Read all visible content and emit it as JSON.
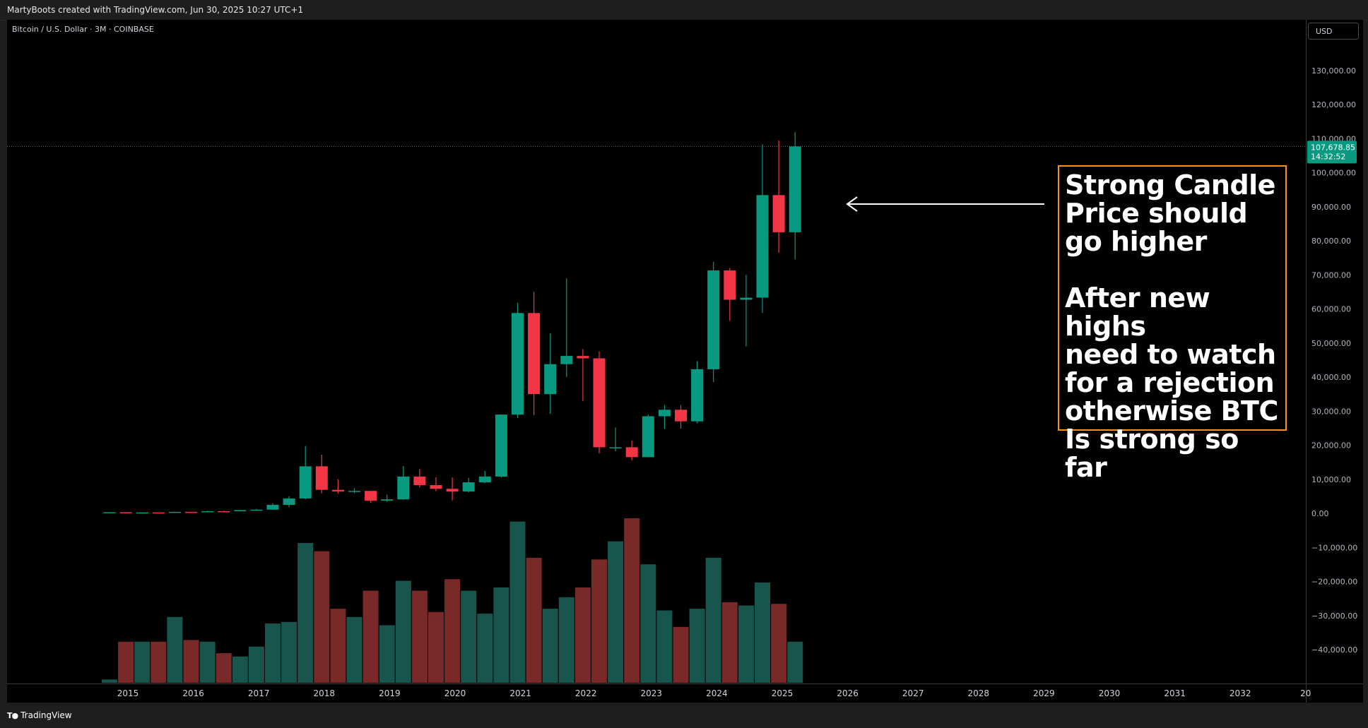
{
  "header": {
    "attribution": "MartyBoots created with TradingView.com, Jun 30, 2025 10:27 UTC+1"
  },
  "symbol": {
    "title": "Bitcoin / U.S. Dollar · 3M · COINBASE"
  },
  "price_scale": {
    "currency": "USD",
    "last_price": "107,678.85",
    "countdown": "14:32:52"
  },
  "annotation": {
    "text": "Strong Candle\nPrice should\ngo higher\n\nAfter new highs\nneed to watch\nfor a rejection\notherwise BTC\nIs strong so far"
  },
  "footer": {
    "brand": "TradingView"
  },
  "colors": {
    "up": "#089981",
    "down": "#f23645",
    "vol_up": "#18564d",
    "vol_down": "#7a2929",
    "annotation_border": "#f7931a",
    "last_price_bg": "#089981"
  },
  "chart_data": {
    "type": "candlestick",
    "interval": "3M",
    "ylim": [
      -50000,
      140000
    ],
    "y_ticks": [
      {
        "v": 130000,
        "label": "130,000.00"
      },
      {
        "v": 120000,
        "label": "120,000.00"
      },
      {
        "v": 110000,
        "label": "110,000.00"
      },
      {
        "v": 100000,
        "label": "100,000.00"
      },
      {
        "v": 90000,
        "label": "90,000.00"
      },
      {
        "v": 80000,
        "label": "80,000.00"
      },
      {
        "v": 70000,
        "label": "70,000.00"
      },
      {
        "v": 60000,
        "label": "60,000.00"
      },
      {
        "v": 50000,
        "label": "50,000.00"
      },
      {
        "v": 40000,
        "label": "40,000.00"
      },
      {
        "v": 30000,
        "label": "30,000.00"
      },
      {
        "v": 20000,
        "label": "20,000.00"
      },
      {
        "v": 10000,
        "label": "10,000.00"
      },
      {
        "v": 0,
        "label": "0.00"
      },
      {
        "v": -10000,
        "label": "−10,000.00"
      },
      {
        "v": -20000,
        "label": "−20,000.00"
      },
      {
        "v": -30000,
        "label": "−30,000.00"
      },
      {
        "v": -40000,
        "label": "−40,000.00"
      }
    ],
    "x_ticks": [
      "2015",
      "2016",
      "2017",
      "2018",
      "2019",
      "2020",
      "2021",
      "2022",
      "2023",
      "2024",
      "2025",
      "2026",
      "2027",
      "2028",
      "2029",
      "2030",
      "2031",
      "2032",
      "20"
    ],
    "candles": [
      {
        "o": 320,
        "h": 380,
        "l": 250,
        "c": 340,
        "vol": 0.02
      },
      {
        "o": 340,
        "h": 350,
        "l": 200,
        "c": 250,
        "vol": 0.25
      },
      {
        "o": 250,
        "h": 320,
        "l": 190,
        "c": 260,
        "vol": 0.25
      },
      {
        "o": 260,
        "h": 260,
        "l": 190,
        "c": 230,
        "vol": 0.25
      },
      {
        "o": 230,
        "h": 470,
        "l": 220,
        "c": 430,
        "vol": 0.4
      },
      {
        "o": 430,
        "h": 460,
        "l": 360,
        "c": 420,
        "vol": 0.26
      },
      {
        "o": 420,
        "h": 770,
        "l": 420,
        "c": 620,
        "vol": 0.25
      },
      {
        "o": 620,
        "h": 780,
        "l": 470,
        "c": 610,
        "vol": 0.18
      },
      {
        "o": 610,
        "h": 970,
        "l": 600,
        "c": 960,
        "vol": 0.16
      },
      {
        "o": 960,
        "h": 1300,
        "l": 890,
        "c": 1080,
        "vol": 0.22
      },
      {
        "o": 1080,
        "h": 3000,
        "l": 1070,
        "c": 2490,
        "vol": 0.36
      },
      {
        "o": 2490,
        "h": 5000,
        "l": 1800,
        "c": 4360,
        "vol": 0.37
      },
      {
        "o": 4360,
        "h": 19800,
        "l": 4100,
        "c": 13800,
        "vol": 0.85
      },
      {
        "o": 13800,
        "h": 17200,
        "l": 5900,
        "c": 6900,
        "vol": 0.8
      },
      {
        "o": 6900,
        "h": 10000,
        "l": 5800,
        "c": 6400,
        "vol": 0.45
      },
      {
        "o": 6400,
        "h": 7400,
        "l": 5900,
        "c": 6600,
        "vol": 0.4
      },
      {
        "o": 6600,
        "h": 6600,
        "l": 3100,
        "c": 3700,
        "vol": 0.56
      },
      {
        "o": 3700,
        "h": 5500,
        "l": 3400,
        "c": 4100,
        "vol": 0.35
      },
      {
        "o": 4100,
        "h": 13900,
        "l": 4000,
        "c": 10800,
        "vol": 0.62
      },
      {
        "o": 10800,
        "h": 13000,
        "l": 7600,
        "c": 8300,
        "vol": 0.56
      },
      {
        "o": 8300,
        "h": 10600,
        "l": 6500,
        "c": 7200,
        "vol": 0.43
      },
      {
        "o": 7200,
        "h": 10500,
        "l": 3800,
        "c": 6400,
        "vol": 0.63
      },
      {
        "o": 6400,
        "h": 10400,
        "l": 6200,
        "c": 9100,
        "vol": 0.56
      },
      {
        "o": 9100,
        "h": 12500,
        "l": 8900,
        "c": 10800,
        "vol": 0.42
      },
      {
        "o": 10800,
        "h": 29000,
        "l": 10500,
        "c": 29000,
        "vol": 0.58
      },
      {
        "o": 29000,
        "h": 61800,
        "l": 28000,
        "c": 58800,
        "vol": 0.98
      },
      {
        "o": 58800,
        "h": 65000,
        "l": 28800,
        "c": 35000,
        "vol": 0.76
      },
      {
        "o": 35000,
        "h": 52900,
        "l": 29200,
        "c": 43800,
        "vol": 0.45
      },
      {
        "o": 43800,
        "h": 69000,
        "l": 40000,
        "c": 46200,
        "vol": 0.52
      },
      {
        "o": 46200,
        "h": 48200,
        "l": 33000,
        "c": 45500,
        "vol": 0.58
      },
      {
        "o": 45500,
        "h": 47500,
        "l": 17600,
        "c": 19400,
        "vol": 0.75
      },
      {
        "o": 19400,
        "h": 25200,
        "l": 18200,
        "c": 19400,
        "vol": 0.86
      },
      {
        "o": 19400,
        "h": 21400,
        "l": 15500,
        "c": 16500,
        "vol": 1.0
      },
      {
        "o": 16500,
        "h": 29000,
        "l": 16500,
        "c": 28500,
        "vol": 0.72
      },
      {
        "o": 28500,
        "h": 31800,
        "l": 24800,
        "c": 30400,
        "vol": 0.44
      },
      {
        "o": 30400,
        "h": 31800,
        "l": 24900,
        "c": 27000,
        "vol": 0.34
      },
      {
        "o": 27000,
        "h": 44700,
        "l": 26500,
        "c": 42300,
        "vol": 0.45
      },
      {
        "o": 42300,
        "h": 73800,
        "l": 38500,
        "c": 71300,
        "vol": 0.76
      },
      {
        "o": 71300,
        "h": 72000,
        "l": 56500,
        "c": 62700,
        "vol": 0.49
      },
      {
        "o": 62700,
        "h": 70000,
        "l": 49000,
        "c": 63300,
        "vol": 0.47
      },
      {
        "o": 63300,
        "h": 108300,
        "l": 58800,
        "c": 93400,
        "vol": 0.61
      },
      {
        "o": 93400,
        "h": 109400,
        "l": 76500,
        "c": 82500,
        "vol": 0.48
      },
      {
        "o": 82500,
        "h": 111900,
        "l": 74500,
        "c": 107678.85,
        "vol": 0.25
      }
    ]
  }
}
